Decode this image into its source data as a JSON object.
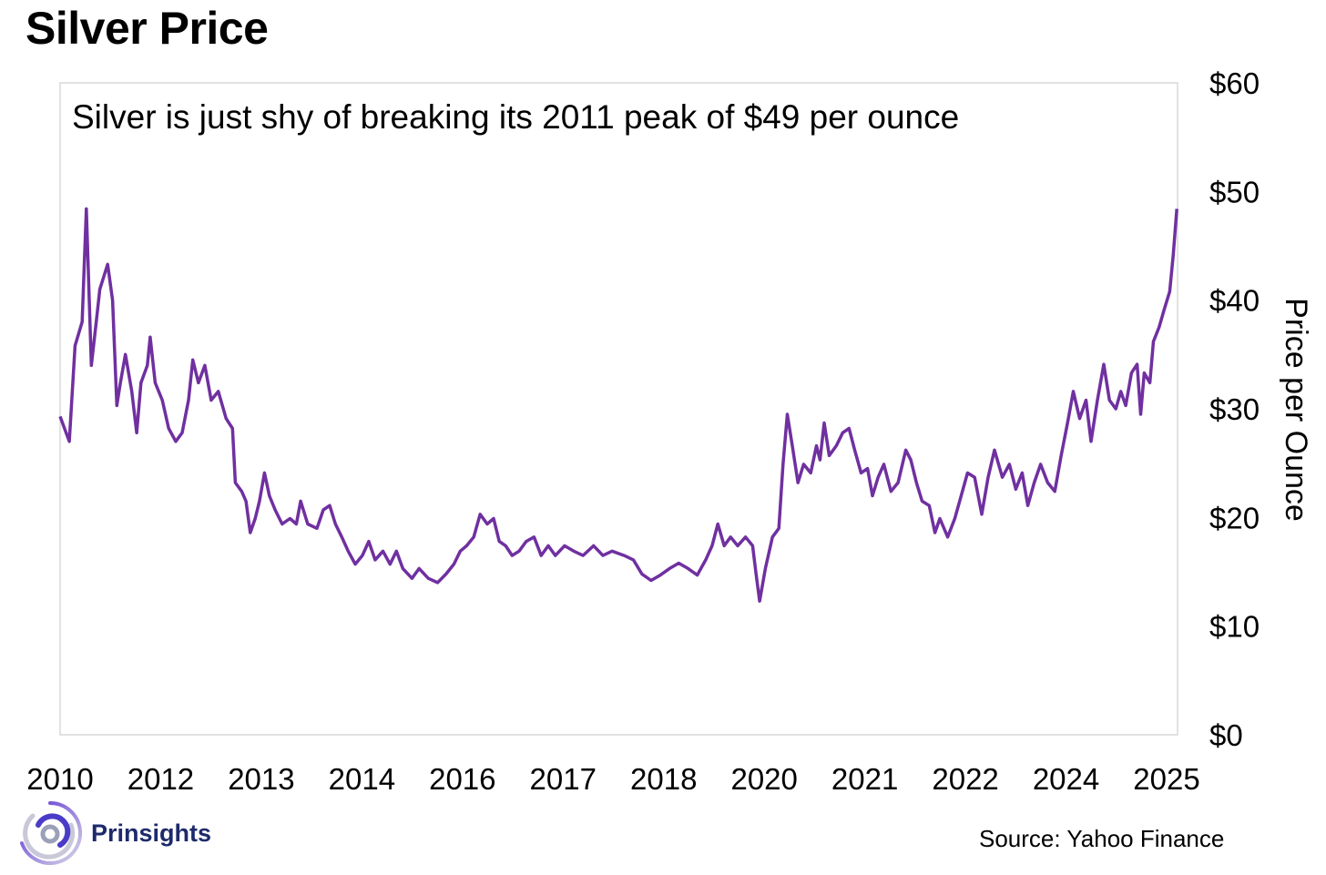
{
  "title": "Silver Price",
  "source": "Source: Yahoo Finance",
  "brand": "Prinsights",
  "colors": {
    "line": "#7030A0",
    "border": "#d9d9d9",
    "brand": "#1d2a6b"
  },
  "chart_data": {
    "type": "line",
    "title": "Silver Price",
    "annotation": "Silver is just shy of breaking its 2011 peak of $49 per ounce",
    "xlabel": "",
    "ylabel": "Price per Ounce",
    "xlim": [
      2010,
      2025.75
    ],
    "ylim": [
      0,
      60
    ],
    "x_tick_labels": [
      "2010",
      "2012",
      "2013",
      "2014",
      "2016",
      "2017",
      "2018",
      "2020",
      "2021",
      "2022",
      "2024",
      "2025"
    ],
    "y_ticks": [
      0,
      10,
      20,
      30,
      40,
      50,
      60
    ],
    "y_tick_labels": [
      "$0",
      "$10",
      "$20",
      "$30",
      "$40",
      "$50",
      "$60"
    ],
    "y_axis_side": "right",
    "grid": false,
    "series": [
      {
        "name": "Silver",
        "points": [
          [
            2010.0,
            29.3
          ],
          [
            2010.13,
            27
          ],
          [
            2010.21,
            35.8
          ],
          [
            2010.31,
            38
          ],
          [
            2010.37,
            48.4
          ],
          [
            2010.44,
            34
          ],
          [
            2010.51,
            38
          ],
          [
            2010.56,
            41
          ],
          [
            2010.67,
            43.3
          ],
          [
            2010.74,
            40
          ],
          [
            2010.8,
            30.3
          ],
          [
            2010.85,
            32.4
          ],
          [
            2010.92,
            35
          ],
          [
            2011.01,
            31.6
          ],
          [
            2011.08,
            27.8
          ],
          [
            2011.14,
            32.4
          ],
          [
            2011.23,
            34
          ],
          [
            2011.27,
            36.6
          ],
          [
            2011.34,
            32.4
          ],
          [
            2011.44,
            30.8
          ],
          [
            2011.53,
            28.2
          ],
          [
            2011.63,
            27
          ],
          [
            2011.72,
            27.8
          ],
          [
            2011.81,
            30.8
          ],
          [
            2011.87,
            34.5
          ],
          [
            2011.95,
            32.4
          ],
          [
            2012.04,
            34
          ],
          [
            2012.13,
            30.8
          ],
          [
            2012.23,
            31.6
          ],
          [
            2012.34,
            29.1
          ],
          [
            2012.43,
            28.2
          ],
          [
            2012.47,
            23.2
          ],
          [
            2012.56,
            22.4
          ],
          [
            2012.62,
            21.5
          ],
          [
            2012.68,
            18.6
          ],
          [
            2012.75,
            19.9
          ],
          [
            2012.81,
            21.5
          ],
          [
            2012.88,
            24.1
          ],
          [
            2012.95,
            22
          ],
          [
            2013.03,
            20.7
          ],
          [
            2013.13,
            19.4
          ],
          [
            2013.24,
            19.9
          ],
          [
            2013.33,
            19.4
          ],
          [
            2013.39,
            21.5
          ],
          [
            2013.49,
            19.4
          ],
          [
            2013.62,
            19
          ],
          [
            2013.71,
            20.7
          ],
          [
            2013.8,
            21.1
          ],
          [
            2013.88,
            19.4
          ],
          [
            2013.97,
            18.2
          ],
          [
            2014.06,
            16.9
          ],
          [
            2014.16,
            15.7
          ],
          [
            2014.26,
            16.5
          ],
          [
            2014.35,
            17.8
          ],
          [
            2014.44,
            16.1
          ],
          [
            2014.55,
            16.9
          ],
          [
            2014.65,
            15.7
          ],
          [
            2014.74,
            16.9
          ],
          [
            2014.83,
            15.3
          ],
          [
            2014.96,
            14.4
          ],
          [
            2015.06,
            15.3
          ],
          [
            2015.19,
            14.4
          ],
          [
            2015.32,
            14
          ],
          [
            2015.44,
            14.8
          ],
          [
            2015.55,
            15.7
          ],
          [
            2015.64,
            16.9
          ],
          [
            2015.73,
            17.4
          ],
          [
            2015.83,
            18.2
          ],
          [
            2015.92,
            20.3
          ],
          [
            2016.02,
            19.4
          ],
          [
            2016.11,
            19.9
          ],
          [
            2016.19,
            17.8
          ],
          [
            2016.28,
            17.4
          ],
          [
            2016.37,
            16.5
          ],
          [
            2016.47,
            16.9
          ],
          [
            2016.57,
            17.8
          ],
          [
            2016.68,
            18.2
          ],
          [
            2016.78,
            16.5
          ],
          [
            2016.88,
            17.4
          ],
          [
            2016.98,
            16.5
          ],
          [
            2017.11,
            17.4
          ],
          [
            2017.24,
            16.9
          ],
          [
            2017.37,
            16.5
          ],
          [
            2017.52,
            17.4
          ],
          [
            2017.65,
            16.5
          ],
          [
            2017.78,
            16.9
          ],
          [
            2017.95,
            16.5
          ],
          [
            2018.08,
            16.1
          ],
          [
            2018.2,
            14.8
          ],
          [
            2018.33,
            14.2
          ],
          [
            2018.46,
            14.7
          ],
          [
            2018.59,
            15.3
          ],
          [
            2018.72,
            15.8
          ],
          [
            2018.85,
            15.3
          ],
          [
            2018.98,
            14.7
          ],
          [
            2019.1,
            16.1
          ],
          [
            2019.19,
            17.4
          ],
          [
            2019.27,
            19.4
          ],
          [
            2019.36,
            17.4
          ],
          [
            2019.45,
            18.2
          ],
          [
            2019.55,
            17.4
          ],
          [
            2019.66,
            18.2
          ],
          [
            2019.76,
            17.4
          ],
          [
            2019.81,
            14.8
          ],
          [
            2019.86,
            12.3
          ],
          [
            2019.94,
            15.3
          ],
          [
            2020.04,
            18.2
          ],
          [
            2020.13,
            19
          ],
          [
            2020.19,
            24.9
          ],
          [
            2020.25,
            29.5
          ],
          [
            2020.32,
            26.6
          ],
          [
            2020.4,
            23.2
          ],
          [
            2020.48,
            24.9
          ],
          [
            2020.58,
            24.1
          ],
          [
            2020.66,
            26.6
          ],
          [
            2020.71,
            25.3
          ],
          [
            2020.77,
            28.7
          ],
          [
            2020.84,
            25.7
          ],
          [
            2020.94,
            26.6
          ],
          [
            2021.03,
            27.8
          ],
          [
            2021.12,
            28.2
          ],
          [
            2021.2,
            26.2
          ],
          [
            2021.29,
            24.1
          ],
          [
            2021.38,
            24.5
          ],
          [
            2021.45,
            22
          ],
          [
            2021.53,
            23.7
          ],
          [
            2021.61,
            24.9
          ],
          [
            2021.71,
            22.4
          ],
          [
            2021.81,
            23.2
          ],
          [
            2021.92,
            26.2
          ],
          [
            2021.99,
            25.3
          ],
          [
            2022.07,
            23.2
          ],
          [
            2022.15,
            21.5
          ],
          [
            2022.25,
            21.1
          ],
          [
            2022.33,
            18.6
          ],
          [
            2022.4,
            19.9
          ],
          [
            2022.51,
            18.2
          ],
          [
            2022.61,
            19.9
          ],
          [
            2022.7,
            22
          ],
          [
            2022.79,
            24.1
          ],
          [
            2022.89,
            23.7
          ],
          [
            2022.99,
            20.3
          ],
          [
            2023.08,
            23.7
          ],
          [
            2023.17,
            26.2
          ],
          [
            2023.28,
            23.7
          ],
          [
            2023.38,
            24.9
          ],
          [
            2023.47,
            22.6
          ],
          [
            2023.56,
            24.1
          ],
          [
            2023.64,
            21.1
          ],
          [
            2023.73,
            23.2
          ],
          [
            2023.82,
            24.9
          ],
          [
            2023.92,
            23.2
          ],
          [
            2024.02,
            22.4
          ],
          [
            2024.11,
            25.7
          ],
          [
            2024.2,
            28.7
          ],
          [
            2024.28,
            31.6
          ],
          [
            2024.37,
            29.1
          ],
          [
            2024.46,
            30.8
          ],
          [
            2024.53,
            27
          ],
          [
            2024.62,
            30.8
          ],
          [
            2024.71,
            34.1
          ],
          [
            2024.79,
            30.8
          ],
          [
            2024.88,
            30
          ],
          [
            2024.95,
            31.6
          ],
          [
            2025.02,
            30.3
          ],
          [
            2025.1,
            33.3
          ],
          [
            2025.18,
            34.1
          ],
          [
            2025.23,
            29.5
          ],
          [
            2025.28,
            33.3
          ],
          [
            2025.36,
            32.4
          ],
          [
            2025.41,
            36.2
          ],
          [
            2025.49,
            37.5
          ],
          [
            2025.56,
            39.1
          ],
          [
            2025.64,
            40.8
          ],
          [
            2025.69,
            44.2
          ],
          [
            2025.74,
            48.4
          ]
        ]
      }
    ]
  }
}
